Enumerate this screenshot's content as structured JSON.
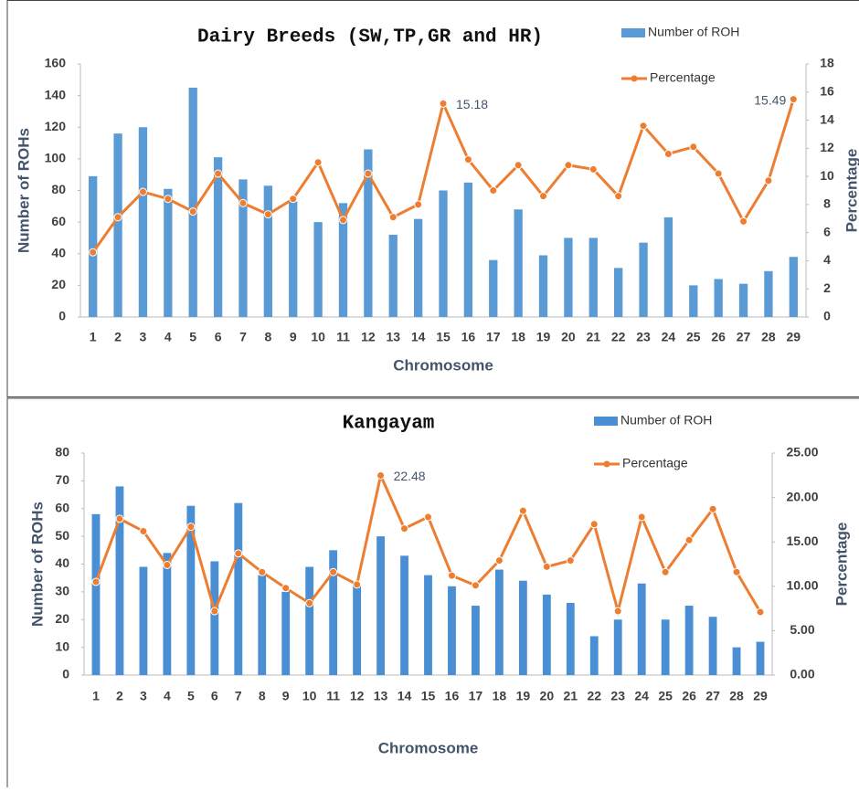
{
  "chart_data": [
    {
      "type": "combo",
      "title": "Dairy Breeds (SW,TP,GR and HR)",
      "x_label": "Chromosome",
      "y_label": "Number of ROHs",
      "y2_label": "Percentage",
      "categories": [
        "1",
        "2",
        "3",
        "4",
        "5",
        "6",
        "7",
        "8",
        "9",
        "10",
        "11",
        "12",
        "13",
        "14",
        "15",
        "16",
        "17",
        "18",
        "19",
        "20",
        "21",
        "22",
        "23",
        "24",
        "25",
        "26",
        "27",
        "28",
        "29"
      ],
      "series": [
        {
          "name": "Number of ROH",
          "type": "bar",
          "color": "#5b9bd5",
          "axis": "y",
          "values": [
            89,
            116,
            120,
            81,
            145,
            101,
            87,
            83,
            73,
            60,
            72,
            106,
            52,
            62,
            80,
            85,
            36,
            68,
            39,
            50,
            50,
            31,
            47,
            63,
            20,
            24,
            21,
            29,
            38
          ]
        },
        {
          "name": "Percentage",
          "type": "line",
          "color": "#ed7d31",
          "axis": "y2",
          "values": [
            4.6,
            7.1,
            8.9,
            8.4,
            7.5,
            10.2,
            8.1,
            7.3,
            8.4,
            11.0,
            6.9,
            10.2,
            7.1,
            8.0,
            15.18,
            11.2,
            9.0,
            10.8,
            8.6,
            10.8,
            10.5,
            8.6,
            13.6,
            11.6,
            12.1,
            10.2,
            6.8,
            9.7,
            15.49
          ],
          "value_labels": [
            null,
            null,
            null,
            null,
            null,
            null,
            null,
            null,
            null,
            null,
            null,
            null,
            null,
            null,
            "15.18",
            null,
            null,
            null,
            null,
            null,
            null,
            null,
            null,
            null,
            null,
            null,
            null,
            null,
            "15.49"
          ]
        }
      ],
      "ylim": [
        0,
        160
      ],
      "yticks": [
        0,
        20,
        40,
        60,
        80,
        100,
        120,
        140,
        160
      ],
      "y2lim": [
        0,
        18
      ],
      "y2ticks": [
        0,
        2,
        4,
        6,
        8,
        10,
        12,
        14,
        16,
        18
      ]
    },
    {
      "type": "combo",
      "title": "Kangayam",
      "x_label": "Chromosome",
      "y_label": "Number of ROHs",
      "y2_label": "Percentage",
      "categories": [
        "1",
        "2",
        "3",
        "4",
        "5",
        "6",
        "7",
        "8",
        "9",
        "10",
        "11",
        "12",
        "13",
        "14",
        "15",
        "16",
        "17",
        "18",
        "19",
        "20",
        "21",
        "22",
        "23",
        "24",
        "25",
        "26",
        "27",
        "28",
        "29"
      ],
      "series": [
        {
          "name": "Number of ROH",
          "type": "bar",
          "color": "#4a8fd4",
          "axis": "y",
          "values": [
            58,
            68,
            39,
            44,
            61,
            41,
            62,
            36,
            30,
            39,
            45,
            33,
            50,
            43,
            36,
            32,
            25,
            38,
            34,
            29,
            26,
            14,
            20,
            33,
            20,
            25,
            21,
            10,
            12
          ]
        },
        {
          "name": "Percentage",
          "type": "line",
          "color": "#ed7d31",
          "axis": "y2",
          "values": [
            10.5,
            17.6,
            16.2,
            12.4,
            16.7,
            7.2,
            13.7,
            11.6,
            9.8,
            8.1,
            11.6,
            10.2,
            22.48,
            16.5,
            17.8,
            11.2,
            10.1,
            12.9,
            18.5,
            12.2,
            12.9,
            17.0,
            7.2,
            17.8,
            11.6,
            15.2,
            18.7,
            11.6,
            7.1
          ],
          "value_labels": [
            null,
            null,
            null,
            null,
            null,
            null,
            null,
            null,
            null,
            null,
            null,
            null,
            "22.48",
            null,
            null,
            null,
            null,
            null,
            null,
            null,
            null,
            null,
            null,
            null,
            null,
            null,
            null,
            null,
            null
          ]
        }
      ],
      "ylim": [
        0,
        80
      ],
      "yticks": [
        0,
        10,
        20,
        30,
        40,
        50,
        60,
        70,
        80
      ],
      "y2lim": [
        0,
        25
      ],
      "y2ticks": [
        {
          "value": 0,
          "label": "0.00"
        },
        {
          "value": 5,
          "label": "5.00"
        },
        {
          "value": 10,
          "label": "10.00"
        },
        {
          "value": 15,
          "label": "15.00"
        },
        {
          "value": 20,
          "label": "20.00"
        },
        {
          "value": 25,
          "label": "25.00"
        }
      ]
    }
  ]
}
